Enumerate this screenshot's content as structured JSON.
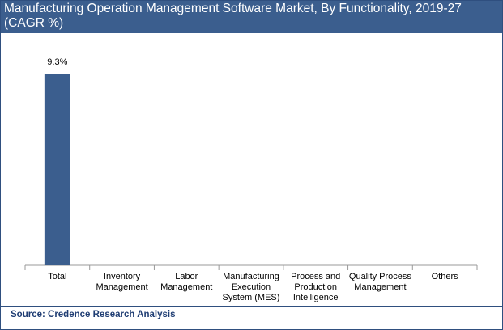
{
  "chart_data": {
    "type": "bar",
    "title": "Manufacturing Operation Management Software Market, By Functionality, 2019-27 (CAGR %)",
    "categories": [
      "Total",
      "Inventory Management",
      "Labor Management",
      "Manufacturing Execution System (MES)",
      "Process and Production Intelligence",
      "Quality Process Management",
      "Others"
    ],
    "values": [
      9.3,
      null,
      null,
      null,
      null,
      null,
      null
    ],
    "value_labels": [
      "9.3%",
      null,
      null,
      null,
      null,
      null,
      null
    ],
    "color": "#3b5e8e",
    "source": "Source: Credence Research Analysis"
  }
}
